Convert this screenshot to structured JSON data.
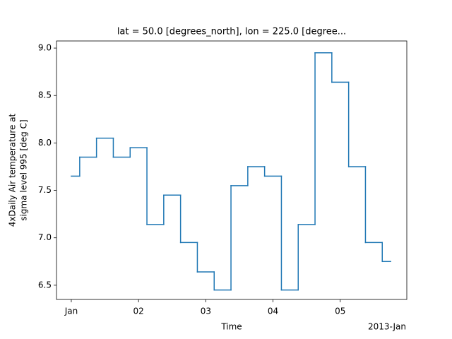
{
  "chart_data": {
    "type": "step",
    "title": "lat = 50.0 [degrees_north], lon = 225.0 [degree...",
    "xlabel": "Time",
    "ylabel": [
      "4xDaily Air temperature at",
      "sigma level 995 [deg C]"
    ],
    "x_offset_label": "2013-Jan",
    "step_where": "mid",
    "series": [
      {
        "color": "#1f77b4",
        "x": [
          1,
          1.25,
          1.5,
          1.75,
          2,
          2.25,
          2.5,
          2.75,
          3,
          3.25,
          3.5,
          3.75,
          4,
          4.25,
          4.5,
          4.75,
          5,
          5.25,
          5.5,
          5.75
        ],
        "values": [
          7.65,
          7.85,
          8.05,
          7.85,
          7.95,
          7.14,
          7.45,
          6.95,
          6.64,
          6.45,
          7.55,
          7.75,
          7.65,
          6.45,
          7.14,
          8.95,
          8.64,
          7.75,
          6.95,
          6.75
        ]
      }
    ],
    "xlim": [
      0.78,
      5.99
    ],
    "xticks": [
      {
        "value": 1,
        "label": "Jan"
      },
      {
        "value": 2,
        "label": "02"
      },
      {
        "value": 3,
        "label": "03"
      },
      {
        "value": 4,
        "label": "04"
      },
      {
        "value": 5,
        "label": "05"
      }
    ],
    "ylim": [
      6.35,
      9.075
    ],
    "yticks": [
      6.5,
      {
        "value": 7,
        "label": "7.0"
      },
      7.5,
      {
        "value": 8,
        "label": "8.0"
      },
      8.5,
      {
        "value": 9,
        "label": "9.0"
      }
    ]
  }
}
